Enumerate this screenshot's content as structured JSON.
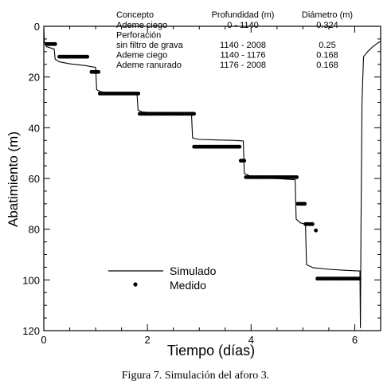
{
  "chart_data": {
    "type": "line",
    "xlabel": "Tiempo (días)",
    "ylabel": "Abatimiento (m)",
    "xlim": [
      0,
      6.5
    ],
    "ylim": [
      120,
      0
    ],
    "y_inverted": true,
    "x_ticks": [
      0,
      2,
      4,
      6
    ],
    "y_ticks": [
      0,
      20,
      40,
      60,
      80,
      100,
      120
    ],
    "grid": false,
    "legend_placement": "bottom-left",
    "table": {
      "headers": [
        "Concepto",
        "Profundidad (m)",
        "Diámetro (m)"
      ],
      "rows": [
        [
          "Ademe ciego",
          "0 - 1140",
          "0.324"
        ],
        [
          "Perforación",
          "",
          ""
        ],
        [
          "sin filtro de grava",
          "1140 - 2008",
          "0.25"
        ],
        [
          "Ademe ciego",
          "1140 - 1176",
          "0.168"
        ],
        [
          "Ademe ranurado",
          "1176 - 2008",
          "0.168"
        ]
      ]
    },
    "series": [
      {
        "name": "Simulado",
        "style": "line",
        "color": "#000000",
        "points": [
          [
            0,
            0
          ],
          [
            0.01,
            6
          ],
          [
            0.05,
            8
          ],
          [
            0.2,
            9
          ],
          [
            0.22,
            13
          ],
          [
            0.3,
            14
          ],
          [
            0.5,
            14.8
          ],
          [
            0.8,
            15.5
          ],
          [
            1.0,
            16.2
          ],
          [
            1.02,
            25
          ],
          [
            1.1,
            25.8
          ],
          [
            1.3,
            26.3
          ],
          [
            1.6,
            26.7
          ],
          [
            1.8,
            27.0
          ],
          [
            1.82,
            33
          ],
          [
            1.9,
            33.8
          ],
          [
            2.2,
            34.2
          ],
          [
            2.6,
            34.5
          ],
          [
            2.85,
            34.8
          ],
          [
            2.87,
            44
          ],
          [
            3.0,
            44.6
          ],
          [
            3.3,
            44.8
          ],
          [
            3.7,
            45.0
          ],
          [
            3.85,
            45.2
          ],
          [
            3.87,
            58
          ],
          [
            4.0,
            59.2
          ],
          [
            4.3,
            59.8
          ],
          [
            4.6,
            60.2
          ],
          [
            4.85,
            60.5
          ],
          [
            4.87,
            76
          ],
          [
            4.95,
            77.5
          ],
          [
            5.05,
            78.0
          ],
          [
            5.07,
            94
          ],
          [
            5.2,
            95.2
          ],
          [
            5.5,
            95.8
          ],
          [
            5.8,
            96.2
          ],
          [
            6.1,
            96.5
          ],
          [
            6.11,
            119
          ],
          [
            6.12,
            80
          ],
          [
            6.14,
            30
          ],
          [
            6.17,
            12
          ],
          [
            6.25,
            10
          ],
          [
            6.35,
            8
          ],
          [
            6.45,
            6.5
          ],
          [
            6.5,
            6
          ]
        ]
      },
      {
        "name": "Medido",
        "style": "markers",
        "color": "#000000",
        "segments": [
          {
            "x_start": 0.05,
            "x_end": 0.25,
            "y": 7
          },
          {
            "x_start": 0.3,
            "x_end": 0.85,
            "y": 12
          },
          {
            "x_start": 0.92,
            "x_end": 1.08,
            "y": 18
          },
          {
            "x_start": 1.08,
            "x_end": 1.85,
            "y": 26.5
          },
          {
            "x_start": 1.85,
            "x_end": 2.9,
            "y": 34.5
          },
          {
            "x_start": 2.9,
            "x_end": 3.8,
            "y": 47.5
          },
          {
            "x_start": 3.8,
            "x_end": 3.9,
            "y": 53
          },
          {
            "x_start": 3.9,
            "x_end": 4.9,
            "y": 59.5
          },
          {
            "x_start": 4.9,
            "x_end": 5.05,
            "y": 70
          },
          {
            "x_start": 5.05,
            "x_end": 5.2,
            "y": 78
          }
        ],
        "points": [
          [
            5.25,
            80.5
          ]
        ],
        "segments_late": [
          {
            "x_start": 5.28,
            "x_end": 6.1,
            "y": 99.5
          }
        ]
      }
    ]
  },
  "caption": "Figura 7. Simulación del aforo 3."
}
